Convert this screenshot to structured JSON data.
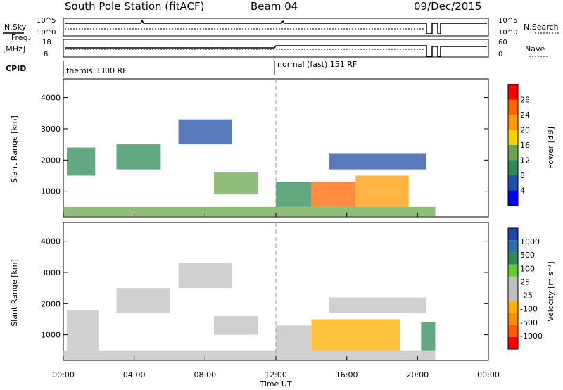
{
  "header": {
    "station": "South Pole Station (fitACF)",
    "beam": "Beam 04",
    "date": "09/Dec/2015"
  },
  "status_panels": {
    "nsky_label": "N.Sky",
    "nsky_ticks": [
      "10^5",
      "10^0"
    ],
    "nsearch_label": "N.Search",
    "freq_label": "Freq.",
    "freq_unit": "[MHz]",
    "freq_ticks": [
      "18",
      "8"
    ],
    "nave_ticks": [
      "60",
      "0"
    ],
    "nave_label": "Nave",
    "cpid_label": "CPID",
    "cpid_modes": [
      "themis 3300 RF",
      "normal (fast) 151 RF"
    ]
  },
  "colors": {
    "power_scale": [
      "#0000ff",
      "#1f4fa6",
      "#2e8b57",
      "#6aa84f",
      "#ffd000",
      "#ff9900",
      "#ff6600",
      "#ff0000"
    ],
    "velocity_scale": [
      "#ff0000",
      "#ff5a00",
      "#ff8c00",
      "#ffb000",
      "#c0c0c0",
      "#c0c0c0",
      "#66cc33",
      "#2e8b57",
      "#2f6fa8",
      "#2244aa"
    ]
  },
  "chart_data": [
    {
      "type": "heatmap",
      "title": "",
      "xlabel": "Time UT",
      "ylabel": "Slant Range [km]",
      "x_ticks": [
        "00:00",
        "04:00",
        "08:00",
        "12:00",
        "16:00",
        "20:00",
        "00:00"
      ],
      "y_ticks": [
        "1000",
        "2000",
        "3000",
        "4000"
      ],
      "xlim": [
        0,
        24
      ],
      "ylim": [
        180,
        4600
      ],
      "colorbar": {
        "label": "Power [dB]",
        "ticks": [
          "4",
          "8",
          "12",
          "16",
          "20",
          "24",
          "28"
        ],
        "range": [
          0,
          30
        ]
      },
      "regions": [
        {
          "t0": 0.2,
          "t1": 1.8,
          "r0": 1500,
          "r1": 2400,
          "value": 8
        },
        {
          "t0": 3.0,
          "t1": 5.5,
          "r0": 1700,
          "r1": 2500,
          "value": 8
        },
        {
          "t0": 6.5,
          "t1": 9.5,
          "r0": 2500,
          "r1": 3300,
          "value": 6
        },
        {
          "t0": 8.5,
          "t1": 11.0,
          "r0": 900,
          "r1": 1600,
          "value": 12
        },
        {
          "t0": 12.0,
          "t1": 14.0,
          "r0": 500,
          "r1": 1300,
          "value": 10
        },
        {
          "t0": 14.0,
          "t1": 16.5,
          "r0": 500,
          "r1": 1300,
          "value": 26
        },
        {
          "t0": 16.5,
          "t1": 19.5,
          "r0": 500,
          "r1": 1500,
          "value": 20
        },
        {
          "t0": 15.0,
          "t1": 20.5,
          "r0": 1700,
          "r1": 2200,
          "value": 6
        },
        {
          "t0": 0.0,
          "t1": 21.0,
          "r0": 200,
          "r1": 500,
          "value": 14
        }
      ]
    },
    {
      "type": "heatmap",
      "title": "",
      "xlabel": "Time UT",
      "ylabel": "Slant Range [km]",
      "x_ticks": [
        "00:00",
        "04:00",
        "08:00",
        "12:00",
        "16:00",
        "20:00",
        "00:00"
      ],
      "y_ticks": [
        "1000",
        "2000",
        "3000",
        "4000"
      ],
      "xlim": [
        0,
        24
      ],
      "ylim": [
        180,
        4600
      ],
      "colorbar": {
        "label": "Velocity [m s⁻¹]",
        "ticks": [
          "-1000",
          "-500",
          "-100",
          "-25",
          "25",
          "100",
          "500",
          "1000"
        ],
        "range": [
          -1250,
          1250
        ]
      },
      "regions": [
        {
          "t0": 0.2,
          "t1": 2.0,
          "r0": 500,
          "r1": 1800,
          "value": 150
        },
        {
          "t0": 3.0,
          "t1": 6.0,
          "r0": 1700,
          "r1": 2500,
          "value": 0
        },
        {
          "t0": 6.5,
          "t1": 9.5,
          "r0": 2500,
          "r1": 3300,
          "value": 0
        },
        {
          "t0": 8.5,
          "t1": 11.0,
          "r0": 1000,
          "r1": 1600,
          "value": 120
        },
        {
          "t0": 12.0,
          "t1": 14.0,
          "r0": 500,
          "r1": 1300,
          "value": 150
        },
        {
          "t0": 14.0,
          "t1": 19.0,
          "r0": 500,
          "r1": 1500,
          "value": -450
        },
        {
          "t0": 15.0,
          "t1": 20.5,
          "r0": 1700,
          "r1": 2200,
          "value": 0
        },
        {
          "t0": 20.2,
          "t1": 21.0,
          "r0": 500,
          "r1": 1400,
          "value": 700
        },
        {
          "t0": 0.0,
          "t1": 21.0,
          "r0": 200,
          "r1": 500,
          "value": -80
        }
      ]
    }
  ]
}
